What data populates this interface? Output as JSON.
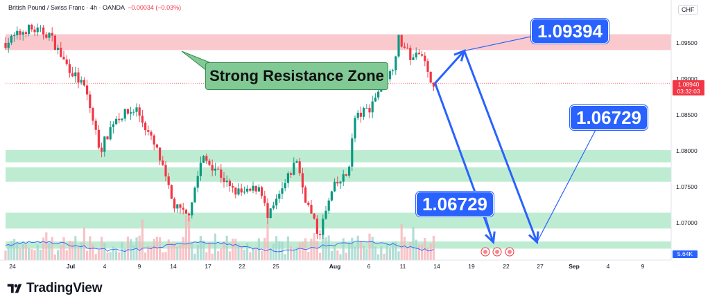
{
  "header": {
    "symbol": "British Pound / Swiss Franc · 4h · OANDA",
    "change": "−0.00034 (−0.03%)"
  },
  "currency": "CHF",
  "current_price": {
    "value": "1.08940",
    "countdown": "03:32:03"
  },
  "volume_value": "5.64K",
  "annotations": {
    "zone_label": "Strong Resistance Zone",
    "target_high": "1.09394",
    "target_mid": "1.06729",
    "target_low": "1.06729"
  },
  "brand": {
    "name": "TradingView"
  },
  "colors": {
    "up": "#089981",
    "down": "#f23645",
    "accent": "#2962ff",
    "resistance_zone": "#f8b7bd",
    "support_zone": "#a8e6c3",
    "volume_line": "#2962ff"
  },
  "chart_data": {
    "type": "candlestick",
    "timeframe": "4h",
    "y_axis": {
      "ticks": [
        "1.09500",
        "1.09000",
        "1.08500",
        "1.08000",
        "1.07500",
        "1.07000"
      ]
    },
    "x_axis": {
      "ticks": [
        "24",
        "Jul",
        "4",
        "9",
        "14",
        "17",
        "22",
        "25",
        "Aug",
        "6",
        "11",
        "14",
        "19",
        "22",
        "27",
        "Sep",
        "4",
        "9"
      ]
    },
    "price_path": [
      {
        "x": "Jun 21",
        "y": 1.095
      },
      {
        "x": "Jun 24",
        "y": 1.097
      },
      {
        "x": "Jun 27",
        "y": 1.0962
      },
      {
        "x": "Jun 29",
        "y": 1.0925
      },
      {
        "x": "Jul 2",
        "y": 1.0885
      },
      {
        "x": "Jul 4",
        "y": 1.08
      },
      {
        "x": "Jul 6",
        "y": 1.0845
      },
      {
        "x": "Jul 9",
        "y": 1.0858
      },
      {
        "x": "Jul 12",
        "y": 1.0795
      },
      {
        "x": "Jul 14",
        "y": 1.0725
      },
      {
        "x": "Jul 16",
        "y": 1.0708
      },
      {
        "x": "Jul 18",
        "y": 1.079
      },
      {
        "x": "Jul 20",
        "y": 1.0775
      },
      {
        "x": "Jul 22",
        "y": 1.0745
      },
      {
        "x": "Jul 24",
        "y": 1.074
      },
      {
        "x": "Jul 26",
        "y": 1.0752
      },
      {
        "x": "Jul 27",
        "y": 1.0705
      },
      {
        "x": "Jul 29",
        "y": 1.0745
      },
      {
        "x": "Jul 31",
        "y": 1.0788
      },
      {
        "x": "Aug 1",
        "y": 1.074
      },
      {
        "x": "Aug 3",
        "y": 1.0682
      },
      {
        "x": "Aug 5",
        "y": 1.0748
      },
      {
        "x": "Aug 7",
        "y": 1.0768
      },
      {
        "x": "Aug 8",
        "y": 1.0845
      },
      {
        "x": "Aug 10",
        "y": 1.086
      },
      {
        "x": "Aug 12",
        "y": 1.09
      },
      {
        "x": "Aug 13",
        "y": 1.091
      },
      {
        "x": "Aug 14",
        "y": 1.0955
      },
      {
        "x": "Aug 16",
        "y": 1.0925
      },
      {
        "x": "Aug 17",
        "y": 1.0945
      },
      {
        "x": "Aug 18",
        "y": 1.0905
      },
      {
        "x": "Aug 19",
        "y": 1.0894
      }
    ],
    "zones": [
      {
        "type": "resistance",
        "from": 1.094,
        "to": 1.0962
      },
      {
        "type": "support",
        "from": 1.0784,
        "to": 1.0801
      },
      {
        "type": "support",
        "from": 1.0757,
        "to": 1.0777
      },
      {
        "type": "support",
        "from": 1.0692,
        "to": 1.0714
      },
      {
        "type": "support",
        "from": 1.0664,
        "to": 1.0674
      }
    ],
    "projection": [
      {
        "x": "Aug 19",
        "y": 1.0894
      },
      {
        "x": "Aug 23",
        "y": 1.0939
      },
      {
        "x": "Aug 27",
        "y": 1.0673
      },
      {
        "x": "Sep 2",
        "y": 1.0673
      }
    ]
  }
}
